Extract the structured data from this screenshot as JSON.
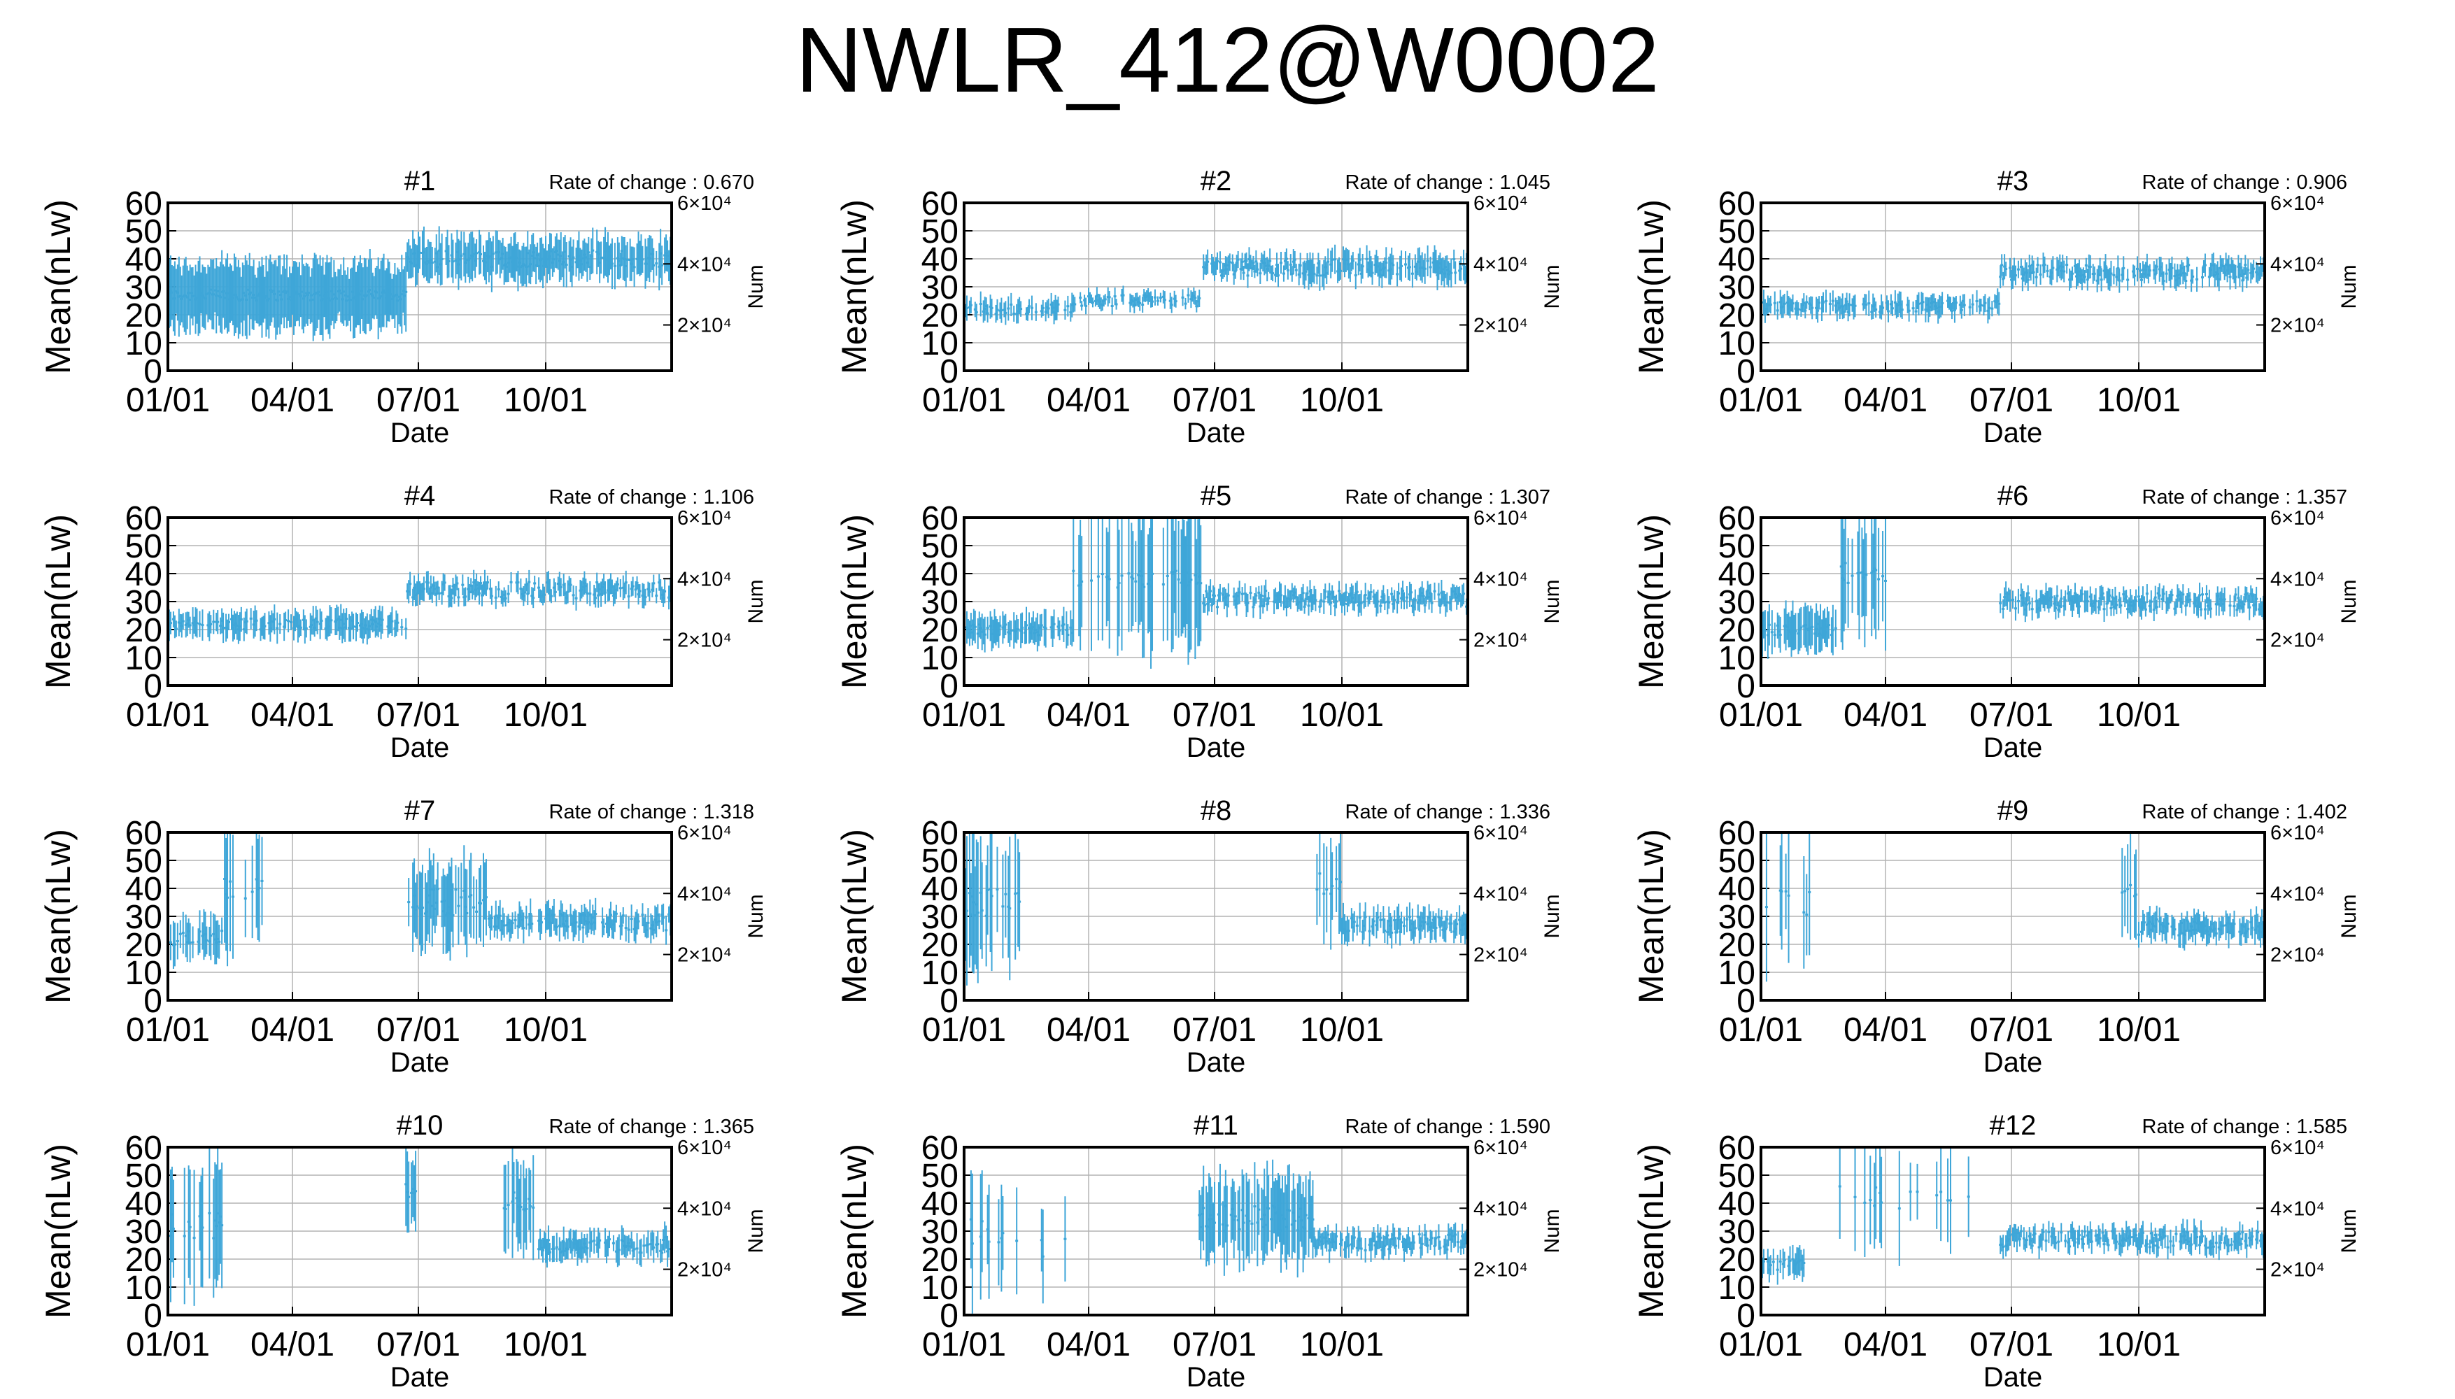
{
  "figure": {
    "title": "NWLR_412@W0002"
  },
  "colors": {
    "series": "#3ea6d8",
    "grid": "#b4b4b4",
    "frame": "#000000",
    "background": "#ffffff"
  },
  "chart_data": [
    {
      "type": "line",
      "title": "#1",
      "rate_label": "Rate of change : 0.670",
      "xlabel": "Date",
      "ylabel": "Mean(nLw)",
      "y2label": "Num",
      "xticks": [
        "01/01",
        "04/01",
        "07/01",
        "10/01"
      ],
      "yticks": [
        0,
        10,
        20,
        30,
        40,
        50,
        60
      ],
      "ylim": [
        0,
        60
      ],
      "y2ticks": [
        "2×10⁴",
        "4×10⁴",
        "6×10⁴"
      ],
      "grid": true,
      "segments": [
        {
          "start": "01/01",
          "end": "06/22",
          "mean": 27,
          "spread": 13,
          "density": 1.0,
          "noise": 2
        },
        {
          "start": "06/23",
          "end": "12/31",
          "mean": 40,
          "spread": 8,
          "density": 0.9,
          "noise": 3
        }
      ]
    },
    {
      "type": "line",
      "title": "#2",
      "rate_label": "Rate of change : 1.045",
      "xlabel": "Date",
      "ylabel": "Mean(nLw)",
      "y2label": "Num",
      "xticks": [
        "01/01",
        "04/01",
        "07/01",
        "10/01"
      ],
      "yticks": [
        0,
        10,
        20,
        30,
        40,
        50,
        60
      ],
      "ylim": [
        0,
        60
      ],
      "y2ticks": [
        "2×10⁴",
        "4×10⁴",
        "6×10⁴"
      ],
      "grid": true,
      "segments": [
        {
          "start": "01/01",
          "end": "03/20",
          "mean": 22,
          "spread": 4,
          "density": 0.6,
          "noise": 2
        },
        {
          "start": "03/21",
          "end": "06/22",
          "mean": 25,
          "spread": 3,
          "density": 0.7,
          "noise": 2
        },
        {
          "start": "06/23",
          "end": "09/01",
          "mean": 37,
          "spread": 4,
          "density": 0.8,
          "noise": 3
        },
        {
          "start": "09/02",
          "end": "12/31",
          "mean": 37,
          "spread": 5,
          "density": 0.8,
          "noise": 3
        }
      ]
    },
    {
      "type": "line",
      "title": "#3",
      "rate_label": "Rate of change : 0.906",
      "xlabel": "Date",
      "ylabel": "Mean(nLw)",
      "y2label": "Num",
      "xticks": [
        "01/01",
        "04/01",
        "07/01",
        "10/01"
      ],
      "yticks": [
        0,
        10,
        20,
        30,
        40,
        50,
        60
      ],
      "ylim": [
        0,
        60
      ],
      "y2ticks": [
        "2×10⁴",
        "4×10⁴",
        "6×10⁴"
      ],
      "grid": true,
      "segments": [
        {
          "start": "01/01",
          "end": "06/22",
          "mean": 23,
          "spread": 4,
          "density": 0.7,
          "noise": 2
        },
        {
          "start": "06/23",
          "end": "12/31",
          "mean": 35,
          "spread": 4,
          "density": 0.8,
          "noise": 3
        }
      ]
    },
    {
      "type": "line",
      "title": "#4",
      "rate_label": "Rate of change : 1.106",
      "xlabel": "Date",
      "ylabel": "Mean(nLw)",
      "y2label": "Num",
      "xticks": [
        "01/01",
        "04/01",
        "07/01",
        "10/01"
      ],
      "yticks": [
        0,
        10,
        20,
        30,
        40,
        50,
        60
      ],
      "ylim": [
        0,
        60
      ],
      "y2ticks": [
        "2×10⁴",
        "4×10⁴",
        "6×10⁴"
      ],
      "grid": true,
      "segments": [
        {
          "start": "01/01",
          "end": "06/22",
          "mean": 22,
          "spread": 5,
          "density": 0.7,
          "noise": 2
        },
        {
          "start": "06/23",
          "end": "12/31",
          "mean": 34,
          "spread": 4,
          "density": 0.8,
          "noise": 3
        }
      ]
    },
    {
      "type": "line",
      "title": "#5",
      "rate_label": "Rate of change : 1.307",
      "xlabel": "Date",
      "ylabel": "Mean(nLw)",
      "y2label": "Num",
      "xticks": [
        "01/01",
        "04/01",
        "07/01",
        "10/01"
      ],
      "yticks": [
        0,
        10,
        20,
        30,
        40,
        50,
        60
      ],
      "ylim": [
        0,
        60
      ],
      "y2ticks": [
        "2×10⁴",
        "4×10⁴",
        "6×10⁴"
      ],
      "grid": true,
      "segments": [
        {
          "start": "01/01",
          "end": "03/20",
          "mean": 20,
          "spread": 6,
          "density": 0.7,
          "noise": 2
        },
        {
          "start": "03/21",
          "end": "06/22",
          "mean": 38,
          "spread": 26,
          "density": 0.55,
          "noise": 3
        },
        {
          "start": "06/23",
          "end": "12/31",
          "mean": 31,
          "spread": 4,
          "density": 0.8,
          "noise": 3
        }
      ]
    },
    {
      "type": "line",
      "title": "#6",
      "rate_label": "Rate of change : 1.357",
      "xlabel": "Date",
      "ylabel": "Mean(nLw)",
      "y2label": "Num",
      "xticks": [
        "01/01",
        "04/01",
        "07/01",
        "10/01"
      ],
      "yticks": [
        0,
        10,
        20,
        30,
        40,
        50,
        60
      ],
      "ylim": [
        0,
        60
      ],
      "y2ticks": [
        "2×10⁴",
        "4×10⁴",
        "6×10⁴"
      ],
      "grid": true,
      "segments": [
        {
          "start": "01/01",
          "end": "02/25",
          "mean": 20,
          "spread": 8,
          "density": 0.8,
          "noise": 2
        },
        {
          "start": "02/26",
          "end": "04/01",
          "mean": 40,
          "spread": 24,
          "density": 0.4,
          "noise": 4
        },
        {
          "start": "06/23",
          "end": "12/31",
          "mean": 30,
          "spread": 4,
          "density": 0.8,
          "noise": 3
        }
      ]
    },
    {
      "type": "line",
      "title": "#7",
      "rate_label": "Rate of change : 1.318",
      "xlabel": "Date",
      "ylabel": "Mean(nLw)",
      "y2label": "Num",
      "xticks": [
        "01/01",
        "04/01",
        "07/01",
        "10/01"
      ],
      "yticks": [
        0,
        10,
        20,
        30,
        40,
        50,
        60
      ],
      "ylim": [
        0,
        60
      ],
      "y2ticks": [
        "2×10⁴",
        "4×10⁴",
        "6×10⁴"
      ],
      "grid": true,
      "segments": [
        {
          "start": "01/01",
          "end": "02/10",
          "mean": 22,
          "spread": 8,
          "density": 0.6,
          "noise": 3
        },
        {
          "start": "02/11",
          "end": "03/10",
          "mean": 40,
          "spread": 22,
          "density": 0.3,
          "noise": 4
        },
        {
          "start": "06/23",
          "end": "08/20",
          "mean": 35,
          "spread": 15,
          "density": 0.7,
          "noise": 5
        },
        {
          "start": "08/21",
          "end": "12/31",
          "mean": 28,
          "spread": 5,
          "density": 0.8,
          "noise": 3
        }
      ]
    },
    {
      "type": "line",
      "title": "#8",
      "rate_label": "Rate of change : 1.336",
      "xlabel": "Date",
      "ylabel": "Mean(nLw)",
      "y2label": "Num",
      "xticks": [
        "01/01",
        "04/01",
        "07/01",
        "10/01"
      ],
      "yticks": [
        0,
        10,
        20,
        30,
        40,
        50,
        60
      ],
      "ylim": [
        0,
        60
      ],
      "y2ticks": [
        "2×10⁴",
        "4×10⁴",
        "6×10⁴"
      ],
      "grid": true,
      "segments": [
        {
          "start": "01/01",
          "end": "02/10",
          "mean": 35,
          "spread": 24,
          "density": 0.3,
          "noise": 5
        },
        {
          "start": "09/10",
          "end": "09/30",
          "mean": 42,
          "spread": 18,
          "density": 0.5,
          "noise": 4
        },
        {
          "start": "10/01",
          "end": "12/31",
          "mean": 27,
          "spread": 5,
          "density": 0.8,
          "noise": 3
        }
      ]
    },
    {
      "type": "line",
      "title": "#9",
      "rate_label": "Rate of change : 1.402",
      "xlabel": "Date",
      "ylabel": "Mean(nLw)",
      "y2label": "Num",
      "xticks": [
        "01/01",
        "04/01",
        "07/01",
        "10/01"
      ],
      "yticks": [
        0,
        10,
        20,
        30,
        40,
        50,
        60
      ],
      "ylim": [
        0,
        60
      ],
      "y2ticks": [
        "2×10⁴",
        "4×10⁴",
        "6×10⁴"
      ],
      "grid": true,
      "segments": [
        {
          "start": "01/01",
          "end": "02/05",
          "mean": 35,
          "spread": 24,
          "density": 0.25,
          "noise": 5
        },
        {
          "start": "09/10",
          "end": "09/30",
          "mean": 40,
          "spread": 18,
          "density": 0.5,
          "noise": 4
        },
        {
          "start": "10/01",
          "end": "12/31",
          "mean": 26,
          "spread": 5,
          "density": 0.8,
          "noise": 3
        }
      ]
    },
    {
      "type": "line",
      "title": "#10",
      "rate_label": "Rate of change : 1.365",
      "xlabel": "Date",
      "ylabel": "Mean(nLw)",
      "y2label": "Num",
      "xticks": [
        "01/01",
        "04/01",
        "07/01",
        "10/01"
      ],
      "yticks": [
        0,
        10,
        20,
        30,
        40,
        50,
        60
      ],
      "ylim": [
        0,
        60
      ],
      "y2ticks": [
        "2×10⁴",
        "4×10⁴",
        "6×10⁴"
      ],
      "grid": true,
      "segments": [
        {
          "start": "01/01",
          "end": "02/10",
          "mean": 32,
          "spread": 22,
          "density": 0.35,
          "noise": 5
        },
        {
          "start": "06/20",
          "end": "06/30",
          "mean": 45,
          "spread": 15,
          "density": 0.6,
          "noise": 3
        },
        {
          "start": "09/01",
          "end": "09/25",
          "mean": 40,
          "spread": 18,
          "density": 0.5,
          "noise": 4
        },
        {
          "start": "09/26",
          "end": "12/31",
          "mean": 25,
          "spread": 5,
          "density": 0.8,
          "noise": 3
        }
      ]
    },
    {
      "type": "line",
      "title": "#11",
      "rate_label": "Rate of change : 1.590",
      "xlabel": "Date",
      "ylabel": "Mean(nLw)",
      "y2label": "Num",
      "xticks": [
        "01/01",
        "04/01",
        "07/01",
        "10/01"
      ],
      "yticks": [
        0,
        10,
        20,
        30,
        40,
        50,
        60
      ],
      "ylim": [
        0,
        60
      ],
      "y2ticks": [
        "2×10⁴",
        "4×10⁴",
        "6×10⁴"
      ],
      "grid": true,
      "segments": [
        {
          "start": "01/01",
          "end": "02/10",
          "mean": 30,
          "spread": 22,
          "density": 0.3,
          "noise": 5
        },
        {
          "start": "02/11",
          "end": "03/20",
          "mean": 25,
          "spread": 20,
          "density": 0.08,
          "noise": 5
        },
        {
          "start": "06/20",
          "end": "09/10",
          "mean": 35,
          "spread": 15,
          "density": 0.8,
          "noise": 5
        },
        {
          "start": "09/11",
          "end": "12/31",
          "mean": 26,
          "spread": 4,
          "density": 0.8,
          "noise": 3
        }
      ]
    },
    {
      "type": "line",
      "title": "#12",
      "rate_label": "Rate of change : 1.585",
      "xlabel": "Date",
      "ylabel": "Mean(nLw)",
      "y2label": "Num",
      "xticks": [
        "01/01",
        "04/01",
        "07/01",
        "10/01"
      ],
      "yticks": [
        0,
        10,
        20,
        30,
        40,
        50,
        60
      ],
      "ylim": [
        0,
        60
      ],
      "y2ticks": [
        "2×10⁴",
        "4×10⁴",
        "6×10⁴"
      ],
      "grid": true,
      "segments": [
        {
          "start": "01/01",
          "end": "02/01",
          "mean": 18,
          "spread": 5,
          "density": 0.7,
          "noise": 2
        },
        {
          "start": "02/10",
          "end": "06/10",
          "mean": 42,
          "spread": 18,
          "density": 0.08,
          "noise": 4
        },
        {
          "start": "06/23",
          "end": "12/31",
          "mean": 27,
          "spread": 4,
          "density": 0.8,
          "noise": 3
        }
      ]
    }
  ]
}
